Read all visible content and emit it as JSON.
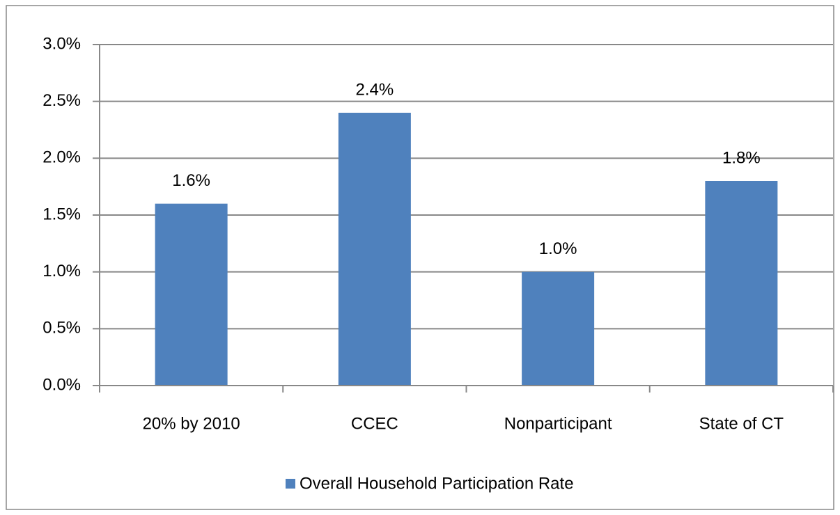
{
  "chart_data": {
    "type": "bar",
    "categories": [
      "20% by 2010",
      "CCEC",
      "Nonparticipant",
      "State of CT"
    ],
    "series": [
      {
        "name": "Overall Household Participation Rate",
        "color": "#4f81bd",
        "values": [
          1.6,
          2.4,
          1.0,
          1.8
        ],
        "value_labels": [
          "1.6%",
          "2.4%",
          "1.0%",
          "1.8%"
        ]
      }
    ],
    "ylim": [
      0,
      3.0
    ],
    "yticks": [
      {
        "value": 0,
        "label": "0.0%"
      },
      {
        "value": 0.5,
        "label": "0.5%"
      },
      {
        "value": 1.0,
        "label": "1.0%"
      },
      {
        "value": 1.5,
        "label": "1.5%"
      },
      {
        "value": 2.0,
        "label": "2.0%"
      },
      {
        "value": 2.5,
        "label": "2.5%"
      },
      {
        "value": 3.0,
        "label": "3.0%"
      }
    ],
    "grid": true,
    "legend": "bottom"
  }
}
